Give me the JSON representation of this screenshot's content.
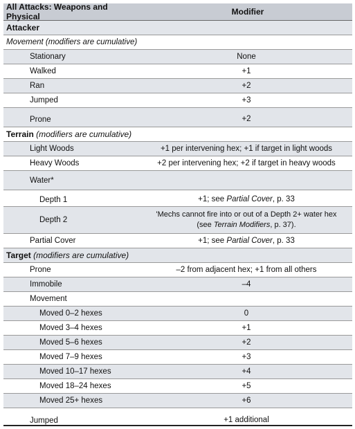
{
  "header": {
    "col1": "All Attacks: Weapons and Physical",
    "col2": "Modifier"
  },
  "attacker": {
    "title": "Attacker",
    "movement_label": "Movement (modifiers are cumulative)",
    "rows": [
      {
        "label": "Stationary",
        "value": "None"
      },
      {
        "label": "Walked",
        "value": "+1"
      },
      {
        "label": "Ran",
        "value": "+2"
      },
      {
        "label": "Jumped",
        "value": "+3"
      },
      {
        "label": "Prone",
        "value": "+2"
      }
    ]
  },
  "terrain": {
    "title": "Terrain",
    "note": "(modifiers are cumulative)",
    "light_woods": {
      "label": "Light Woods",
      "value": "+1 per intervening hex; +1 if target in light woods"
    },
    "heavy_woods": {
      "label": "Heavy Woods",
      "value": "+2 per intervening hex; +2 if target in heavy woods"
    },
    "water": {
      "label": "Water*"
    },
    "depth1": {
      "label": "Depth 1",
      "value_prefix": "+1; see ",
      "value_ref": "Partial Cover",
      "value_suffix": ", p. 33"
    },
    "depth2": {
      "label": "Depth 2",
      "line1": "'Mechs cannot fire into or out of a Depth 2+ water hex",
      "line2_prefix": "(see ",
      "line2_ref": "Terrain Modifiers",
      "line2_suffix": ", p. 37)."
    },
    "partial_cover": {
      "label": "Partial Cover",
      "value_prefix": "+1; see ",
      "value_ref": "Partial Cover",
      "value_suffix": ", p. 33"
    }
  },
  "target": {
    "title": "Target",
    "note": "(modifiers are cumulative)",
    "prone": {
      "label": "Prone",
      "value": "–2 from adjacent hex; +1 from all others"
    },
    "immobile": {
      "label": "Immobile",
      "value": "–4"
    },
    "movement": {
      "label": "Movement"
    },
    "moves": [
      {
        "label": "Moved 0–2 hexes",
        "value": "0"
      },
      {
        "label": "Moved 3–4 hexes",
        "value": "+1"
      },
      {
        "label": "Moved 5–6 hexes",
        "value": "+2"
      },
      {
        "label": "Moved 7–9 hexes",
        "value": "+3"
      },
      {
        "label": "Moved 10–17 hexes",
        "value": "+4"
      },
      {
        "label": "Moved 18–24 hexes",
        "value": "+5"
      },
      {
        "label": "Moved 25+ hexes",
        "value": "+6"
      }
    ],
    "jumped": {
      "label": "Jumped",
      "value": "+1 additional"
    }
  }
}
